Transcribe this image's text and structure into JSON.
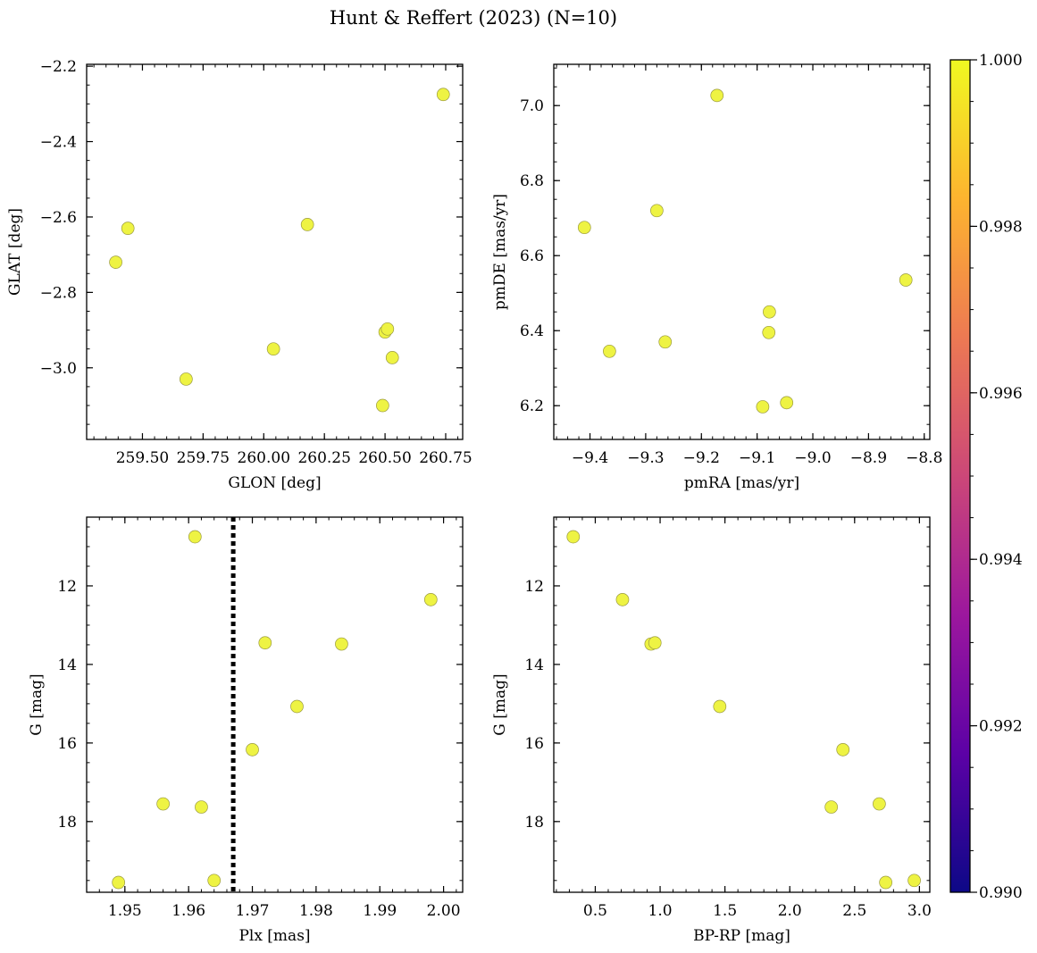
{
  "figure_title": "Hunt & Reffert (2023) (N=10)",
  "point_color": "#eef343",
  "point_edge": "#9a9a40",
  "guide_color": "#000000",
  "colorbar": {
    "min": 0.99,
    "max": 1.0,
    "ticks": [
      "1.000",
      "0.998",
      "0.996",
      "0.994",
      "0.992",
      "0.990"
    ],
    "tick_values": [
      1.0,
      0.998,
      0.996,
      0.994,
      0.992,
      0.99
    ],
    "colors": [
      "#f0f921",
      "#fdb42f",
      "#ed7953",
      "#cc4778",
      "#9c179e",
      "#5c01a6",
      "#0d0887"
    ]
  },
  "chart_data": [
    {
      "type": "scatter",
      "id": "glon-glat",
      "xlabel": "GLON [deg]",
      "ylabel": "GLAT [deg]",
      "xlim": [
        259.27,
        260.82
      ],
      "ylim": [
        -3.19,
        -2.195
      ],
      "xticks": [
        259.5,
        259.75,
        260.0,
        260.25,
        260.5,
        260.75
      ],
      "xtick_labels": [
        "259.50",
        "259.75",
        "260.00",
        "260.25",
        "260.50",
        "260.75"
      ],
      "yticks": [
        -3.0,
        -2.8,
        -2.6,
        -2.4,
        -2.2
      ],
      "ytick_labels": [
        "−3.0",
        "−2.8",
        "−2.6",
        "−2.4",
        "−2.2"
      ],
      "x": [
        259.39,
        259.44,
        259.68,
        260.04,
        260.18,
        260.49,
        260.5,
        260.51,
        260.53,
        260.74
      ],
      "y": [
        -2.72,
        -2.63,
        -3.03,
        -2.95,
        -2.62,
        -3.1,
        -2.905,
        -2.897,
        -2.973,
        -2.275
      ]
    },
    {
      "type": "scatter",
      "id": "pm",
      "xlabel": "pmRA [mas/yr]",
      "ylabel": "pmDE [mas/yr]",
      "xlim": [
        -9.465,
        -8.79
      ],
      "ylim": [
        6.11,
        7.11
      ],
      "xticks": [
        -9.4,
        -9.3,
        -9.2,
        -9.1,
        -9.0,
        -8.9,
        -8.8
      ],
      "xtick_labels": [
        "−9.4",
        "−9.3",
        "−9.2",
        "−9.1",
        "−9.0",
        "−8.9",
        "−8.8"
      ],
      "yticks": [
        6.2,
        6.4,
        6.6,
        6.8,
        7.0
      ],
      "ytick_labels": [
        "6.2",
        "6.4",
        "6.6",
        "6.8",
        "7.0"
      ],
      "x": [
        -9.41,
        -9.365,
        -9.28,
        -9.265,
        -9.172,
        -9.09,
        -9.079,
        -9.078,
        -9.047,
        -8.833
      ],
      "y": [
        6.675,
        6.345,
        6.72,
        6.37,
        7.027,
        6.197,
        6.395,
        6.45,
        6.208,
        6.535
      ]
    },
    {
      "type": "scatter",
      "id": "plx-g",
      "xlabel": "Plx [mas]",
      "ylabel": "G [mag]",
      "xlim": [
        1.944,
        2.003
      ],
      "ylim": [
        19.8,
        10.25
      ],
      "xticks": [
        1.95,
        1.96,
        1.97,
        1.98,
        1.99,
        2.0
      ],
      "xtick_labels": [
        "1.95",
        "1.96",
        "1.97",
        "1.98",
        "1.99",
        "2.00"
      ],
      "yticks": [
        12,
        14,
        16,
        18
      ],
      "ytick_labels": [
        "12",
        "14",
        "16",
        "18"
      ],
      "x": [
        1.949,
        1.956,
        1.961,
        1.962,
        1.964,
        1.97,
        1.972,
        1.977,
        1.984,
        1.998
      ],
      "y": [
        19.55,
        17.55,
        10.75,
        17.63,
        19.5,
        16.17,
        13.45,
        15.07,
        13.48,
        12.35
      ],
      "vline": 1.967
    },
    {
      "type": "scatter",
      "id": "cmd",
      "xlabel": "BP-RP [mag]",
      "ylabel": "G [mag]",
      "xlim": [
        0.18,
        3.08
      ],
      "ylim": [
        19.8,
        10.25
      ],
      "xticks": [
        0.5,
        1.0,
        1.5,
        2.0,
        2.5,
        3.0
      ],
      "xtick_labels": [
        "0.5",
        "1.0",
        "1.5",
        "2.0",
        "2.5",
        "3.0"
      ],
      "yticks": [
        12,
        14,
        16,
        18
      ],
      "ytick_labels": [
        "12",
        "14",
        "16",
        "18"
      ],
      "x": [
        0.33,
        0.71,
        0.93,
        0.96,
        1.46,
        2.32,
        2.41,
        2.69,
        2.74,
        2.96
      ],
      "y": [
        10.75,
        12.35,
        13.48,
        13.45,
        15.07,
        17.63,
        16.17,
        17.55,
        19.55,
        19.5
      ]
    }
  ]
}
